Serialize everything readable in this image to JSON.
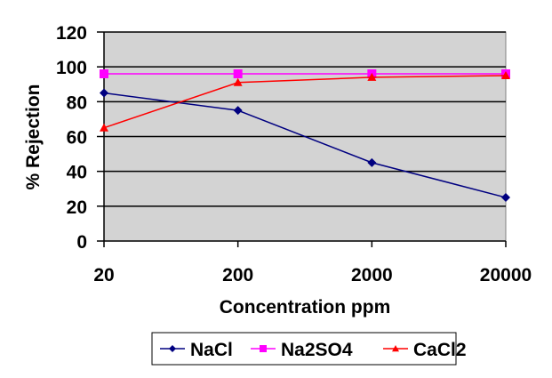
{
  "chart_data": {
    "type": "line",
    "title": "",
    "xlabel": "Concentration ppm",
    "ylabel": "% Rejection",
    "categories": [
      "20",
      "200",
      "2000",
      "20000"
    ],
    "ylim": [
      0,
      120
    ],
    "yticks": [
      "0",
      "20",
      "40",
      "60",
      "80",
      "100",
      "120"
    ],
    "grid": true,
    "legend_position": "bottom",
    "series": [
      {
        "name": "NaCl",
        "color": "#000080",
        "marker": "diamond",
        "values": [
          85,
          75,
          45,
          25
        ]
      },
      {
        "name": "Na2SO4",
        "color": "#FF00FF",
        "marker": "square",
        "values": [
          96,
          96,
          96,
          96
        ]
      },
      {
        "name": "CaCl2",
        "color": "#FF0000",
        "marker": "triangle",
        "values": [
          65,
          91,
          94,
          95
        ]
      }
    ],
    "plot_background": "#D3D3D3"
  }
}
